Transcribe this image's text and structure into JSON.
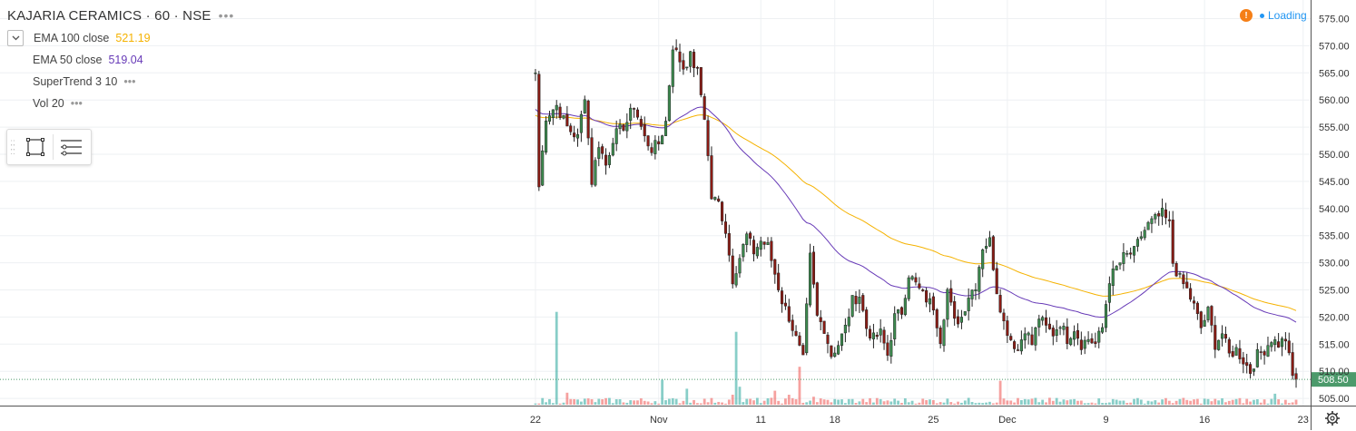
{
  "header": {
    "symbol": "KAJARIA CERAMICS · 60 · NSE",
    "more": "•••"
  },
  "studies": [
    {
      "name": "EMA 100 close",
      "value": "521.19",
      "color": "#f5b200"
    },
    {
      "name": "EMA 50 close",
      "value": "519.04",
      "color": "#673ab7"
    },
    {
      "name": "SuperTrend 3 10",
      "value": "•••",
      "color": "#999999"
    },
    {
      "name": "Vol 20",
      "value": "•••",
      "color": "#999999"
    }
  ],
  "status": {
    "text": "Loading",
    "warning": "!"
  },
  "colors": {
    "up": "#26a69a",
    "down": "#ef5350",
    "upBody": "#3c8c4f",
    "downBody": "#8b1b14",
    "ema100": "#f5b200",
    "ema50": "#673ab7",
    "lastPrice": "#4c9a6b"
  },
  "chart_data": {
    "type": "candlestick",
    "title": "KAJARIA CERAMICS · 60 · NSE",
    "ylim": [
      503,
      577
    ],
    "y_ticks": [
      505,
      510,
      515,
      520,
      525,
      530,
      535,
      540,
      545,
      550,
      555,
      560,
      565,
      570,
      575
    ],
    "y_tick_labels": [
      "505.00",
      "510.00",
      "515.00",
      "520.00",
      "525.00",
      "530.00",
      "535.00",
      "540.00",
      "545.00",
      "550.00",
      "555.00",
      "560.00",
      "565.00",
      "570.00",
      "575.00"
    ],
    "x_ticks": [
      {
        "label": "22",
        "bar": 0
      },
      {
        "label": "Nov",
        "bar": 35
      },
      {
        "label": "11",
        "bar": 64
      },
      {
        "label": "18",
        "bar": 85
      },
      {
        "label": "25",
        "bar": 113
      },
      {
        "label": "Dec",
        "bar": 134
      },
      {
        "label": "9",
        "bar": 162
      },
      {
        "label": "16",
        "bar": 190
      },
      {
        "label": "23",
        "bar": 218
      }
    ],
    "last_price": "508.50",
    "series": [
      {
        "name": "EMA 100 close",
        "last": 521.19,
        "color": "#f5b200"
      },
      {
        "name": "EMA 50 close",
        "last": 519.04,
        "color": "#673ab7"
      }
    ],
    "close_anchors": [
      [
        0,
        565
      ],
      [
        1,
        544
      ],
      [
        3,
        557
      ],
      [
        6,
        559
      ],
      [
        9,
        555
      ],
      [
        12,
        553
      ],
      [
        14,
        561
      ],
      [
        16,
        545
      ],
      [
        18,
        552
      ],
      [
        20,
        548
      ],
      [
        22,
        553
      ],
      [
        26,
        556
      ],
      [
        28,
        559
      ],
      [
        31,
        553
      ],
      [
        33,
        551
      ],
      [
        35,
        552
      ],
      [
        37,
        556
      ],
      [
        39,
        570
      ],
      [
        42,
        566
      ],
      [
        44,
        568
      ],
      [
        46,
        565
      ],
      [
        48,
        557
      ],
      [
        50,
        542
      ],
      [
        52,
        541
      ],
      [
        54,
        536
      ],
      [
        56,
        527
      ],
      [
        58,
        531
      ],
      [
        60,
        535
      ],
      [
        62,
        532
      ],
      [
        64,
        534
      ],
      [
        66,
        533
      ],
      [
        68,
        528
      ],
      [
        70,
        523
      ],
      [
        72,
        520
      ],
      [
        74,
        516
      ],
      [
        76,
        512
      ],
      [
        78,
        531
      ],
      [
        80,
        520
      ],
      [
        82,
        518
      ],
      [
        84,
        513
      ],
      [
        86,
        515
      ],
      [
        88,
        518
      ],
      [
        90,
        523
      ],
      [
        92,
        524
      ],
      [
        94,
        518
      ],
      [
        96,
        516
      ],
      [
        98,
        517
      ],
      [
        100,
        513
      ],
      [
        102,
        520
      ],
      [
        104,
        521
      ],
      [
        106,
        528
      ],
      [
        108,
        526
      ],
      [
        110,
        524
      ],
      [
        113,
        522
      ],
      [
        115,
        516
      ],
      [
        117,
        525
      ],
      [
        119,
        519
      ],
      [
        121,
        520
      ],
      [
        123,
        524
      ],
      [
        125,
        526
      ],
      [
        127,
        533
      ],
      [
        129,
        534
      ],
      [
        131,
        525
      ],
      [
        133,
        519
      ],
      [
        135,
        516
      ],
      [
        137,
        514
      ],
      [
        139,
        518
      ],
      [
        141,
        515
      ],
      [
        143,
        520
      ],
      [
        145,
        518
      ],
      [
        147,
        517
      ],
      [
        149,
        519
      ],
      [
        151,
        516
      ],
      [
        153,
        518
      ],
      [
        155,
        515
      ],
      [
        157,
        516
      ],
      [
        159,
        515
      ],
      [
        161,
        518
      ],
      [
        163,
        527
      ],
      [
        165,
        529
      ],
      [
        167,
        531
      ],
      [
        170,
        532
      ],
      [
        172,
        535
      ],
      [
        174,
        537
      ],
      [
        176,
        538
      ],
      [
        178,
        539
      ],
      [
        180,
        537
      ],
      [
        181,
        530
      ],
      [
        183,
        527
      ],
      [
        185,
        525
      ],
      [
        187,
        522
      ],
      [
        189,
        518
      ],
      [
        191,
        521
      ],
      [
        193,
        515
      ],
      [
        195,
        517
      ],
      [
        197,
        513
      ],
      [
        199,
        514
      ],
      [
        201,
        512
      ],
      [
        203,
        510
      ],
      [
        205,
        513
      ],
      [
        207,
        514
      ],
      [
        209,
        516
      ],
      [
        211,
        515
      ],
      [
        213,
        516
      ],
      [
        215,
        509
      ],
      [
        216,
        508.5
      ]
    ],
    "volume_spikes": [
      [
        6,
        0.93
      ],
      [
        9,
        0.12
      ],
      [
        14,
        0.06
      ],
      [
        36,
        0.25
      ],
      [
        43,
        0.16
      ],
      [
        56,
        0.1
      ],
      [
        57,
        0.73
      ],
      [
        58,
        0.18
      ],
      [
        68,
        0.14
      ],
      [
        72,
        0.1
      ],
      [
        75,
        0.38
      ],
      [
        79,
        0.08
      ],
      [
        132,
        0.24
      ],
      [
        190,
        0.06
      ],
      [
        210,
        0.11
      ],
      [
        216,
        0.05
      ]
    ]
  }
}
